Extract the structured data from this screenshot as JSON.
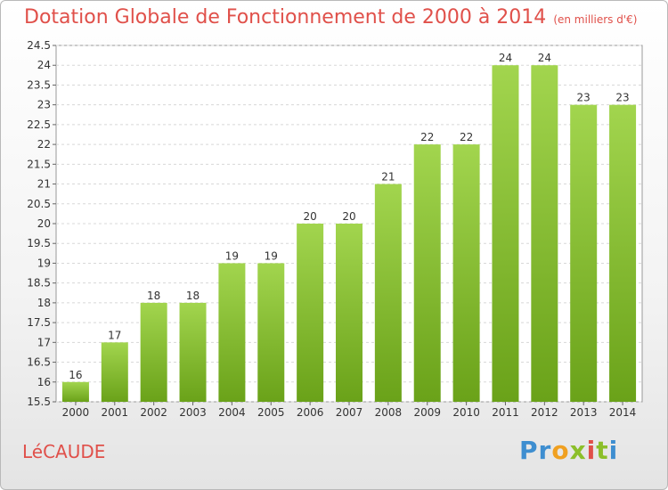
{
  "title": "Dotation Globale de Fonctionnement de 2000 à 2014",
  "unit": "(en milliers d'€)",
  "commune": "LéCAUDE",
  "logo": "Proxiti",
  "colors": {
    "title": "#e0504a",
    "bar_light": "#a2d54e",
    "bar_dark": "#6aa219"
  },
  "chart_data": {
    "type": "bar",
    "title": "Dotation Globale de Fonctionnement de 2000 à 2014",
    "xlabel": "",
    "ylabel": "",
    "categories": [
      "2000",
      "2001",
      "2002",
      "2003",
      "2004",
      "2005",
      "2006",
      "2007",
      "2008",
      "2009",
      "2010",
      "2011",
      "2012",
      "2013",
      "2014"
    ],
    "values": [
      16,
      17,
      18,
      18,
      19,
      19,
      20,
      20,
      21,
      22,
      22,
      24,
      24,
      23,
      23
    ],
    "ylim": [
      15.5,
      24.5
    ],
    "yticks": [
      "15.5",
      "16",
      "16.5",
      "17",
      "17.5",
      "18",
      "18.5",
      "19",
      "19.5",
      "20",
      "20.5",
      "21",
      "21.5",
      "22",
      "22.5",
      "23",
      "23.5",
      "24",
      "24.5"
    ],
    "grid": true,
    "legend": "none"
  }
}
